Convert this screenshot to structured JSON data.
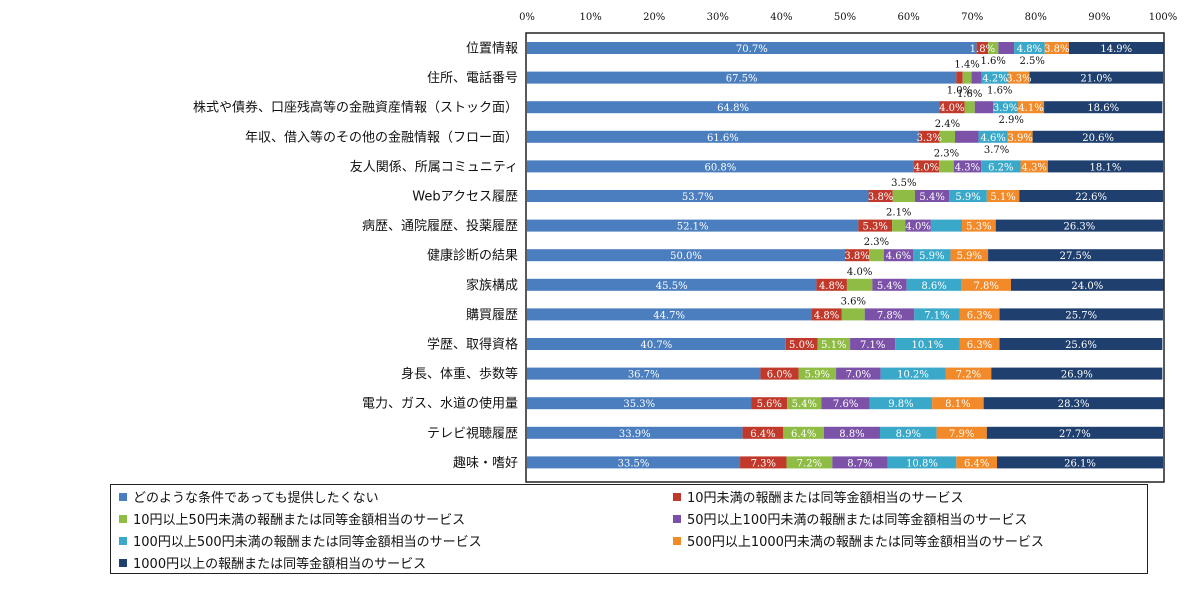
{
  "chart_data": {
    "type": "bar",
    "orientation": "horizontal",
    "stacked": true,
    "percent_stacked": true,
    "title": "",
    "xlabel": "",
    "ylabel": "",
    "xlim": [
      0,
      100
    ],
    "x_ticks": [
      "0%",
      "10%",
      "20%",
      "30%",
      "40%",
      "50%",
      "60%",
      "70%",
      "80%",
      "90%",
      "100%"
    ],
    "grid": false,
    "legend_position": "bottom",
    "categories": [
      "位置情報",
      "住所、電話番号",
      "株式や債券、口座残高等の金融資産情報（ストック面）",
      "年収、借入等のその他の金融情報（フロー面）",
      "友人関係、所属コミュニティ",
      "Webアクセス履歴",
      "病歴、通院履歴、投薬履歴",
      "健康診断の結果",
      "家族構成",
      "購買履歴",
      "学歴、取得資格",
      "身長、体重、歩数等",
      "電力、ガス、水道の使用量",
      "テレビ視聴履歴",
      "趣味・嗜好"
    ],
    "series": [
      {
        "name": "どのような条件であっても提供したくない",
        "color": "#4a7ebf",
        "values": [
          70.7,
          67.5,
          64.8,
          61.6,
          60.8,
          53.7,
          52.1,
          50.0,
          45.5,
          44.7,
          40.7,
          36.7,
          35.3,
          33.9,
          33.5
        ]
      },
      {
        "name": "10円未満の報酬または同等金額相当のサービス",
        "color": "#c0392b",
        "values": [
          1.8,
          1.0,
          4.0,
          3.3,
          4.0,
          3.8,
          5.3,
          3.8,
          4.8,
          4.8,
          5.0,
          6.0,
          5.6,
          6.4,
          7.3
        ]
      },
      {
        "name": "10円以上50円未満の報酬または同等金額相当のサービス",
        "color": "#8fbc45",
        "values": [
          1.6,
          1.4,
          1.6,
          2.4,
          2.3,
          3.5,
          2.1,
          2.3,
          4.0,
          3.6,
          5.1,
          5.9,
          5.4,
          6.4,
          7.2
        ]
      },
      {
        "name": "50円以上100円未満の報酬または同等金額相当のサービス",
        "color": "#7b52a8",
        "values": [
          2.5,
          1.6,
          2.9,
          3.7,
          4.3,
          5.4,
          4.0,
          4.6,
          5.4,
          7.8,
          7.1,
          7.0,
          7.6,
          8.8,
          8.7
        ]
      },
      {
        "name": "100円以上500円未満の報酬または同等金額相当のサービス",
        "color": "#3aa8c9",
        "values": [
          4.8,
          4.2,
          3.9,
          4.6,
          6.2,
          5.9,
          4.9,
          5.9,
          8.6,
          7.1,
          10.1,
          10.2,
          9.8,
          8.9,
          10.8
        ]
      },
      {
        "name": "500円以上1000円未満の報酬または同等金額相当のサービス",
        "color": "#f28a2a",
        "values": [
          3.8,
          3.3,
          4.1,
          3.9,
          4.3,
          5.1,
          5.3,
          5.9,
          7.8,
          6.3,
          6.3,
          7.2,
          8.1,
          7.9,
          6.4
        ]
      },
      {
        "name": "1000円以上の報酬または同等金額相当のサービス",
        "color": "#1f3f6e",
        "values": [
          14.9,
          21.0,
          18.6,
          20.6,
          18.1,
          22.6,
          26.3,
          27.5,
          24.0,
          25.7,
          25.6,
          26.9,
          28.3,
          27.7,
          26.1
        ]
      }
    ],
    "data_labels": [
      [
        "70.7%",
        "1.8%",
        "1.6%",
        "2.5%",
        "4.8%",
        "3.8%",
        "14.9%"
      ],
      [
        "67.5%",
        "1.0%",
        "1.4%",
        "1.6%",
        "4.2%",
        "3.3%",
        "21.0%"
      ],
      [
        "64.8%",
        "4.0%",
        "1.6%",
        "2.9%",
        "3.9%",
        "4.1%",
        "18.6%"
      ],
      [
        "61.6%",
        "3.3%",
        "2.4%",
        "3.7%",
        "4.6%",
        "3.9%",
        "20.6%"
      ],
      [
        "60.8%",
        "4.0%",
        "2.3%",
        "4.3%",
        "6.2%",
        "4.3%",
        "18.1%"
      ],
      [
        "53.7%",
        "3.8%",
        "3.5%",
        "5.4%",
        "5.9%",
        "5.1%",
        "22.6%"
      ],
      [
        "52.1%",
        "5.3%",
        "2.1%",
        "4.0%",
        "",
        "5.3%",
        "26.3%"
      ],
      [
        "50.0%",
        "3.8%",
        "2.3%",
        "4.6%",
        "5.9%",
        "5.9%",
        "27.5%"
      ],
      [
        "45.5%",
        "4.8%",
        "4.0%",
        "5.4%",
        "8.6%",
        "7.8%",
        "24.0%"
      ],
      [
        "44.7%",
        "4.8%",
        "3.6%",
        "7.8%",
        "7.1%",
        "6.3%",
        "25.7%"
      ],
      [
        "40.7%",
        "5.0%",
        "5.1%",
        "7.1%",
        "10.1%",
        "6.3%",
        "25.6%"
      ],
      [
        "36.7%",
        "6.0%",
        "5.9%",
        "7.0%",
        "10.2%",
        "7.2%",
        "26.9%"
      ],
      [
        "35.3%",
        "5.6%",
        "5.4%",
        "7.6%",
        "9.8%",
        "8.1%",
        "28.3%"
      ],
      [
        "33.9%",
        "6.4%",
        "6.4%",
        "8.8%",
        "8.9%",
        "7.9%",
        "27.7%"
      ],
      [
        "33.5%",
        "7.3%",
        "7.2%",
        "8.7%",
        "10.8%",
        "6.4%",
        "26.1%"
      ]
    ],
    "external_labels": [
      [
        false,
        false,
        true,
        true,
        false,
        false,
        false
      ],
      [
        false,
        true,
        true,
        true,
        false,
        false,
        false
      ],
      [
        false,
        false,
        true,
        true,
        false,
        false,
        false
      ],
      [
        false,
        false,
        true,
        true,
        false,
        false,
        false
      ],
      [
        false,
        false,
        true,
        false,
        false,
        false,
        false
      ],
      [
        false,
        false,
        true,
        false,
        false,
        false,
        false
      ],
      [
        false,
        false,
        true,
        false,
        false,
        false,
        false
      ],
      [
        false,
        false,
        true,
        false,
        false,
        false,
        false
      ],
      [
        false,
        false,
        true,
        false,
        false,
        false,
        false
      ],
      [
        false,
        false,
        true,
        false,
        false,
        false,
        false
      ],
      [
        false,
        false,
        false,
        false,
        false,
        false,
        false
      ],
      [
        false,
        false,
        false,
        false,
        false,
        false,
        false
      ],
      [
        false,
        false,
        false,
        false,
        false,
        false,
        false
      ],
      [
        false,
        false,
        false,
        false,
        false,
        false,
        false
      ],
      [
        false,
        false,
        false,
        false,
        false,
        false,
        false
      ]
    ]
  },
  "legend": {
    "items": [
      {
        "label": "どのような条件であっても提供したくない",
        "color": "#4a7ebf"
      },
      {
        "label": "10円未満の報酬または同等金額相当のサービス",
        "color": "#c0392b"
      },
      {
        "label": "10円以上50円未満の報酬または同等金額相当のサービス",
        "color": "#8fbc45"
      },
      {
        "label": "50円以上100円未満の報酬または同等金額相当のサービス",
        "color": "#7b52a8"
      },
      {
        "label": "100円以上500円未満の報酬または同等金額相当のサービス",
        "color": "#3aa8c9"
      },
      {
        "label": "500円以上1000円未満の報酬または同等金額相当のサービス",
        "color": "#f28a2a"
      },
      {
        "label": "1000円以上の報酬または同等金額相当のサービス",
        "color": "#1f3f6e"
      }
    ]
  }
}
